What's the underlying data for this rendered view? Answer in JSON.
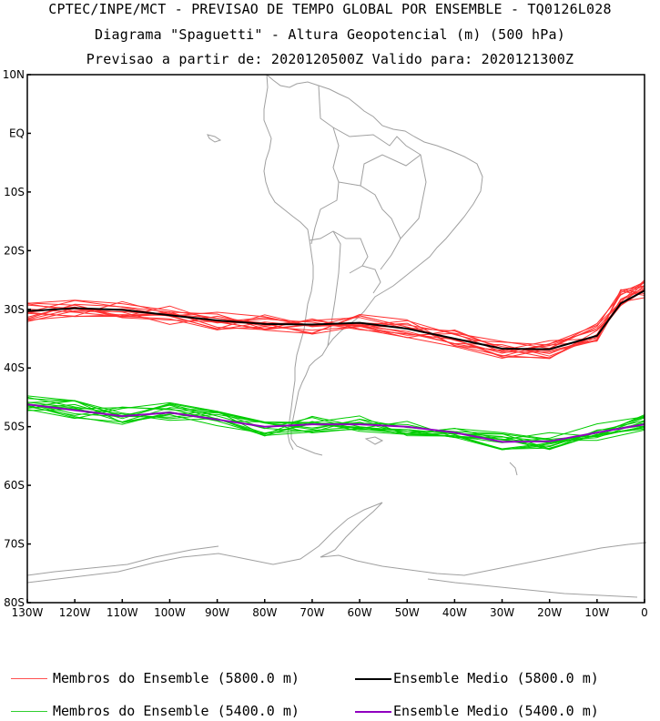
{
  "header": {
    "line1": "CPTEC/INPE/MCT - PREVISAO DE TEMPO GLOBAL POR ENSEMBLE - TQ0126L028",
    "line2": "Diagrama \"Spaguetti\" - Altura Geopotencial (m) (500 hPa)",
    "line3": "Previsao a partir de: 2020120500Z  Valido para: 2020121300Z"
  },
  "map": {
    "lat_labels": [
      "10N",
      "EQ",
      "10S",
      "20S",
      "30S",
      "40S",
      "50S",
      "60S",
      "70S",
      "80S"
    ],
    "lon_labels": [
      "130W",
      "120W",
      "110W",
      "100W",
      "90W",
      "80W",
      "70W",
      "60W",
      "50W",
      "40W",
      "30W",
      "20W",
      "10W",
      "0"
    ],
    "lat_range": [
      -80,
      10
    ],
    "lon_range": [
      -130,
      0
    ],
    "coastline_color": "#a0a0a0"
  },
  "chart_data": {
    "type": "line",
    "series": [
      {
        "name": "Membros do Ensemble (5800.0 m)",
        "color": "#ff3030",
        "lon": [
          -130,
          -120,
          -110,
          -100,
          -90,
          -80,
          -70,
          -60,
          -50,
          -40,
          -30,
          -20,
          -10,
          -5,
          0
        ],
        "lat": [
          -30.5,
          -29.8,
          -30.2,
          -31,
          -32,
          -32.5,
          -32.7,
          -32.3,
          -33.3,
          -35,
          -36.8,
          -36.8,
          -34,
          -28,
          -26.5
        ]
      },
      {
        "name": "Ensemble Medio (5800.0 m)",
        "color": "#000000",
        "lon": [
          -130,
          -120,
          -110,
          -100,
          -90,
          -80,
          -70,
          -60,
          -50,
          -40,
          -30,
          -20,
          -10,
          -5,
          0
        ],
        "lat": [
          -30.3,
          -29.8,
          -30.1,
          -31,
          -31.9,
          -32.5,
          -32.6,
          -32.3,
          -33.3,
          -35,
          -36.7,
          -36.8,
          -34.5,
          -29,
          -26.8
        ]
      },
      {
        "name": "Membros do Ensemble (5400.0 m)",
        "color": "#00cc00",
        "lon": [
          -130,
          -120,
          -110,
          -100,
          -90,
          -80,
          -70,
          -60,
          -50,
          -40,
          -30,
          -20,
          -10,
          0
        ],
        "lat": [
          -46,
          -47,
          -48,
          -47.5,
          -48.5,
          -50,
          -49.5,
          -49.5,
          -50,
          -51,
          -52.5,
          -52.5,
          -51,
          -49.5
        ]
      },
      {
        "name": "Ensemble Medio (5400.0 m)",
        "color": "#9000c0",
        "lon": [
          -130,
          -120,
          -110,
          -100,
          -90,
          -80,
          -70,
          -60,
          -50,
          -40,
          -30,
          -20,
          -10,
          0
        ],
        "lat": [
          -46.2,
          -47.2,
          -48.2,
          -47.6,
          -48.8,
          -50,
          -49.6,
          -49.6,
          -50,
          -51,
          -52.6,
          -52.5,
          -51,
          -49.6
        ]
      }
    ]
  },
  "legend": {
    "items": [
      {
        "label": "Membros do Ensemble (5800.0 m)",
        "color": "#ff5050"
      },
      {
        "label": "Ensemble Medio (5800.0 m)",
        "color": "#000000"
      },
      {
        "label": "Membros do Ensemble (5400.0 m)",
        "color": "#30d030"
      },
      {
        "label": "Ensemble Medio (5400.0 m)",
        "color": "#9000c0"
      }
    ]
  }
}
